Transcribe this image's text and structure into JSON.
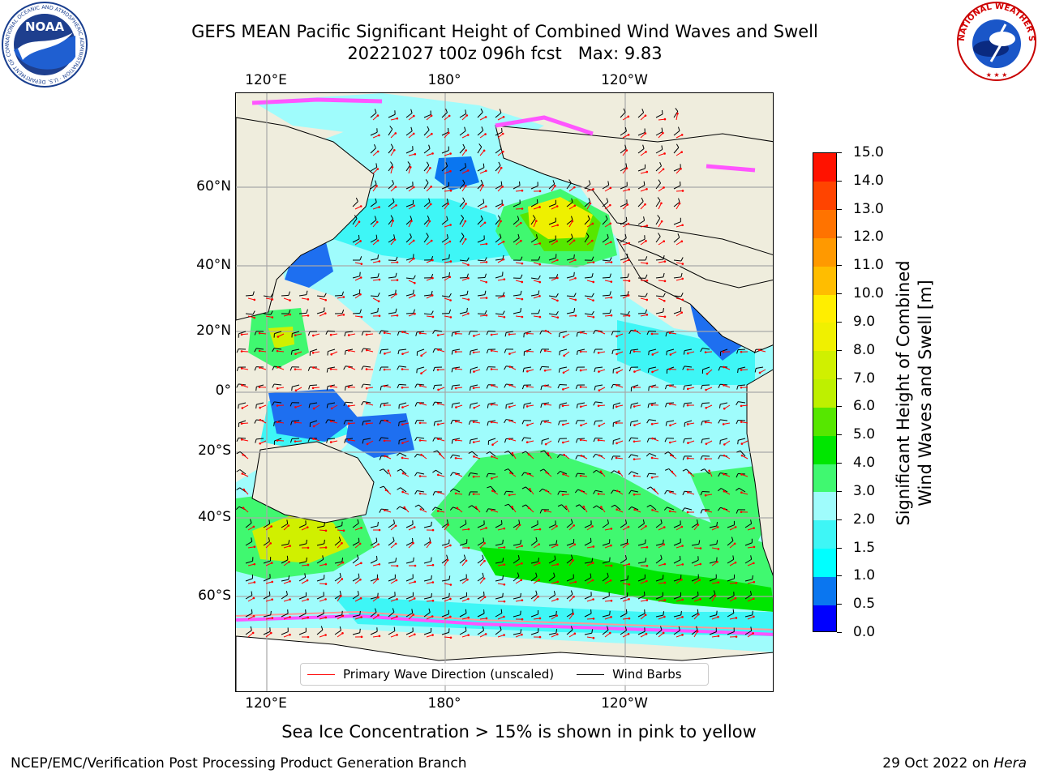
{
  "title": {
    "line1": "GEFS MEAN Pacific Significant Height of Combined Wind Waves and Swell",
    "line2": "20221027 t00z 096h fcst   Max: 9.83"
  },
  "axes": {
    "lon_ticks": [
      "120°E",
      "180°",
      "120°W"
    ],
    "lat_ticks": [
      "60°N",
      "40°N",
      "20°N",
      "0°",
      "20°S",
      "40°S",
      "60°S"
    ]
  },
  "legend": {
    "wave_direction": "Primary Wave Direction (unscaled)",
    "wind_barbs": "Wind Barbs",
    "wave_color": "#ff0000",
    "barb_color": "#000000"
  },
  "colorbar": {
    "title_line1": "Significant Height of Combined",
    "title_line2": "Wind Waves and Swell [m]",
    "tick_labels": [
      "0.0",
      "0.5",
      "1.0",
      "1.5",
      "2.0",
      "3.0",
      "4.0",
      "5.0",
      "6.0",
      "7.0",
      "8.0",
      "9.0",
      "10.0",
      "11.0",
      "12.0",
      "13.0",
      "14.0",
      "15.0"
    ],
    "colors": [
      "#0000ff",
      "#0a76f0",
      "#00ffff",
      "#3ef6f6",
      "#9ffcfc",
      "#40f870",
      "#00e600",
      "#56e700",
      "#bef000",
      "#d0f000",
      "#f0f000",
      "#ffee00",
      "#ffbd00",
      "#ff9900",
      "#ff7300",
      "#ff4400",
      "#ff1200"
    ]
  },
  "map": {
    "land_color": "#efeddd",
    "ice_colors": [
      "#ff55ff",
      "#ff9999",
      "#ffcc66"
    ],
    "peak_region_color": "#eef000"
  },
  "ice_note": "Sea Ice Concentration > 15% is shown in pink to yellow",
  "footer": {
    "left": "NCEP/EMC/Verification Post Processing Product Generation Branch",
    "right_prefix": "29 Oct 2022 on ",
    "right_host": "Hera"
  },
  "logos": {
    "noaa_text": "NOAA",
    "noaa_ring": "NATIONAL OCEANIC AND ATMOSPHERIC ADMINISTRATION · U.S. DEPARTMENT OF COMMERCE",
    "nws_ring": "NATIONAL WEATHER SERVICE"
  }
}
